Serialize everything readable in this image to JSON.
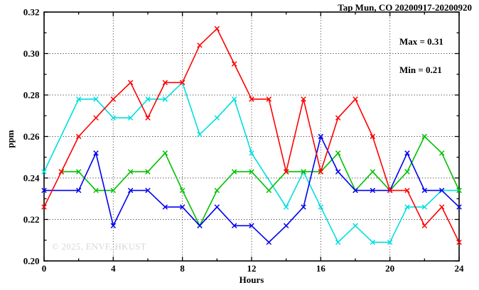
{
  "header": {
    "title": "Tap Mun, CO 20200917-20200920"
  },
  "legend": {
    "max": "Max = 0.31",
    "min": "Min = 0.21"
  },
  "watermark": "© 2025, ENVF, HKUST",
  "chart_data": {
    "type": "line",
    "title": "Tap Mun, CO 20200917-20200920",
    "xlabel": "Hours",
    "ylabel": "ppm",
    "xlim": [
      0,
      24
    ],
    "ylim": [
      0.2,
      0.32
    ],
    "x_major_ticks": [
      0,
      4,
      8,
      12,
      16,
      20,
      24
    ],
    "x_minor_ticks": [
      2,
      6,
      10,
      14,
      18,
      22
    ],
    "x_tick_labels": [
      "0",
      "4",
      "8",
      "12",
      "16",
      "20",
      "24"
    ],
    "y_major_ticks": [
      0.2,
      0.22,
      0.24,
      0.26,
      0.28,
      0.3,
      0.32
    ],
    "y_minor_ticks": [
      0.21,
      0.23,
      0.25,
      0.27,
      0.29,
      0.31
    ],
    "y_tick_labels": [
      "0.20",
      "0.22",
      "0.24",
      "0.26",
      "0.28",
      "0.30",
      "0.32"
    ],
    "grid": {
      "vertical_at": [
        4,
        8,
        12,
        16,
        20
      ],
      "horizontal_at": [
        0.22,
        0.24,
        0.26,
        0.28,
        0.3
      ],
      "style": "dotted"
    },
    "annotations": {
      "max_text": "Max = 0.31",
      "min_text": "Min = 0.21",
      "position": "top-right-inside"
    },
    "hours": [
      0,
      1,
      2,
      3,
      4,
      5,
      6,
      7,
      8,
      9,
      10,
      11,
      12,
      13,
      14,
      15,
      16,
      17,
      18,
      19,
      20,
      21,
      22,
      23,
      24
    ],
    "series": [
      {
        "name": "cyan",
        "color": "#00dede",
        "marker": "x",
        "values": [
          0.243,
          null,
          0.278,
          0.278,
          0.269,
          0.269,
          0.278,
          0.278,
          0.286,
          0.261,
          0.269,
          0.278,
          0.252,
          null,
          0.226,
          0.243,
          0.226,
          0.209,
          0.217,
          0.209,
          0.209,
          0.226,
          0.226,
          0.234,
          0.234
        ]
      },
      {
        "name": "green",
        "color": "#00c000",
        "marker": "x",
        "values": [
          null,
          0.243,
          0.243,
          0.234,
          0.234,
          0.243,
          0.243,
          0.252,
          0.234,
          0.217,
          0.234,
          0.243,
          0.243,
          0.234,
          0.243,
          0.243,
          0.243,
          0.252,
          0.234,
          0.243,
          0.234,
          0.243,
          0.26,
          0.252,
          0.234
        ]
      },
      {
        "name": "blue",
        "color": "#0000ee",
        "marker": "x",
        "values": [
          0.234,
          null,
          0.234,
          0.252,
          0.217,
          0.234,
          0.234,
          0.226,
          0.226,
          0.217,
          0.226,
          0.217,
          0.217,
          0.209,
          0.217,
          0.226,
          0.26,
          0.243,
          0.234,
          0.234,
          0.234,
          0.252,
          0.234,
          0.234,
          0.226
        ]
      },
      {
        "name": "red",
        "color": "#ff0000",
        "marker": "x",
        "values": [
          0.226,
          0.243,
          0.26,
          0.269,
          0.278,
          0.286,
          0.269,
          0.286,
          0.286,
          0.304,
          0.312,
          0.295,
          0.278,
          0.278,
          0.243,
          0.278,
          0.243,
          0.269,
          0.278,
          0.26,
          0.234,
          0.234,
          0.217,
          0.226,
          0.209
        ]
      }
    ]
  }
}
